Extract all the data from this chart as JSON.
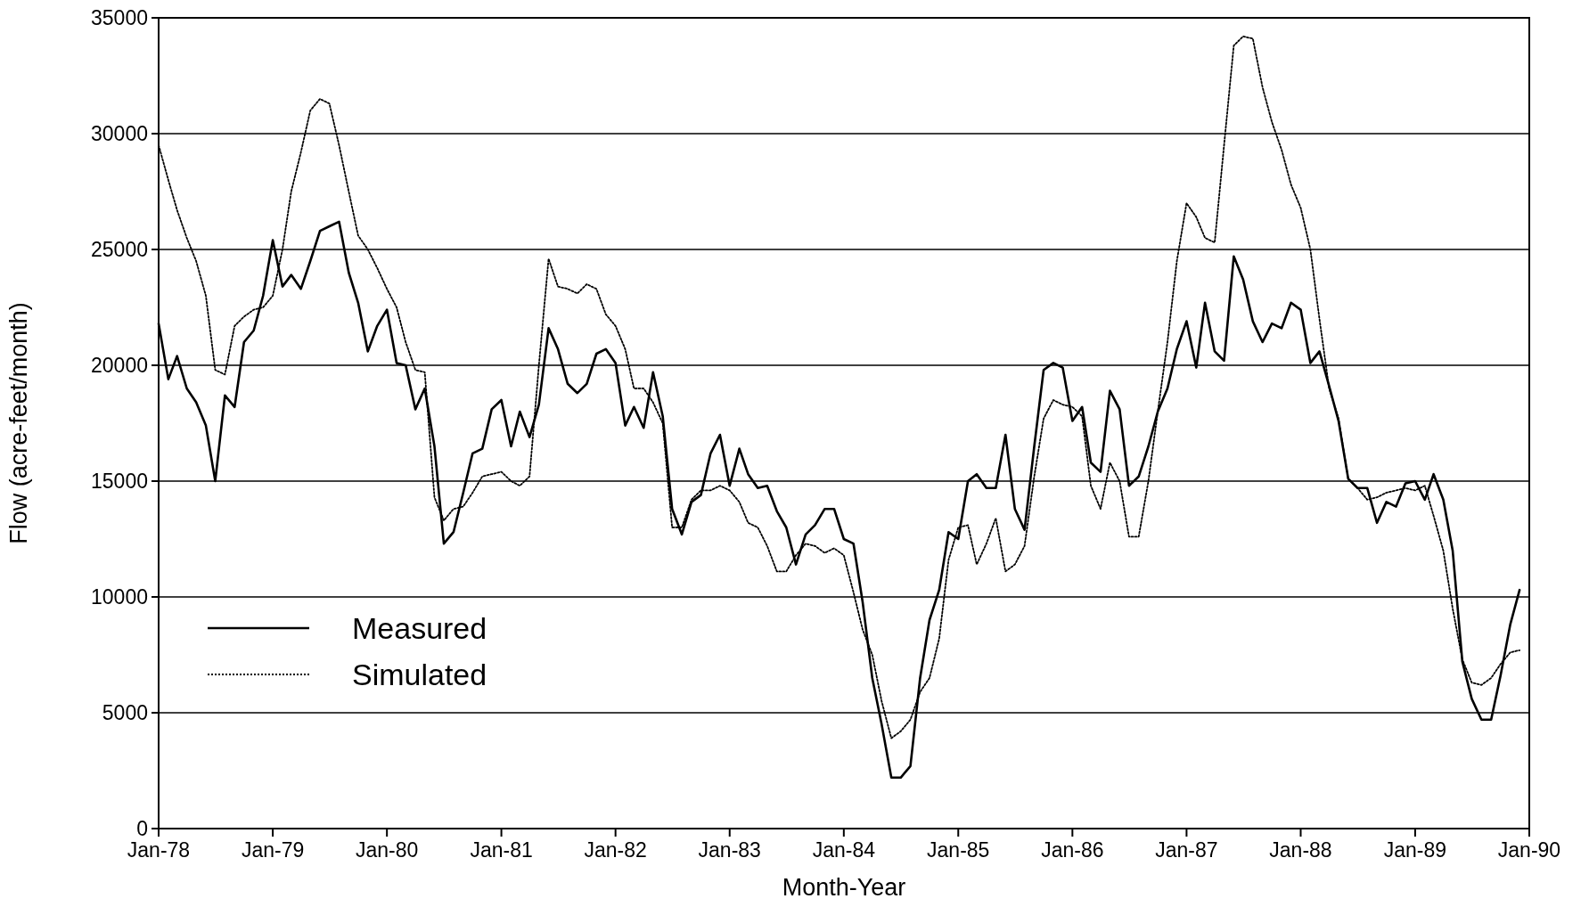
{
  "chart_data": {
    "type": "line",
    "xlabel": "Month-Year",
    "ylabel": "Flow (acre-feet/month)",
    "x": [
      "1978-01",
      "1978-02",
      "1978-03",
      "1978-04",
      "1978-05",
      "1978-06",
      "1978-07",
      "1978-08",
      "1978-09",
      "1978-10",
      "1978-11",
      "1978-12",
      "1979-01",
      "1979-02",
      "1979-03",
      "1979-04",
      "1979-05",
      "1979-06",
      "1979-07",
      "1979-08",
      "1979-09",
      "1979-10",
      "1979-11",
      "1979-12",
      "1980-01",
      "1980-02",
      "1980-03",
      "1980-04",
      "1980-05",
      "1980-06",
      "1980-07",
      "1980-08",
      "1980-09",
      "1980-10",
      "1980-11",
      "1980-12",
      "1981-01",
      "1981-02",
      "1981-03",
      "1981-04",
      "1981-05",
      "1981-06",
      "1981-07",
      "1981-08",
      "1981-09",
      "1981-10",
      "1981-11",
      "1981-12",
      "1982-01",
      "1982-02",
      "1982-03",
      "1982-04",
      "1982-05",
      "1982-06",
      "1982-07",
      "1982-08",
      "1982-09",
      "1982-10",
      "1982-11",
      "1982-12",
      "1983-01",
      "1983-02",
      "1983-03",
      "1983-04",
      "1983-05",
      "1983-06",
      "1983-07",
      "1983-08",
      "1983-09",
      "1983-10",
      "1983-11",
      "1983-12",
      "1984-01",
      "1984-02",
      "1984-03",
      "1984-04",
      "1984-05",
      "1984-06",
      "1984-07",
      "1984-08",
      "1984-09",
      "1984-10",
      "1984-11",
      "1984-12",
      "1985-01",
      "1985-02",
      "1985-03",
      "1985-04",
      "1985-05",
      "1985-06",
      "1985-07",
      "1985-08",
      "1985-09",
      "1985-10",
      "1985-11",
      "1985-12",
      "1986-01",
      "1986-02",
      "1986-03",
      "1986-04",
      "1986-05",
      "1986-06",
      "1986-07",
      "1986-08",
      "1986-09",
      "1986-10",
      "1986-11",
      "1986-12",
      "1987-01",
      "1987-02",
      "1987-03",
      "1987-04",
      "1987-05",
      "1987-06",
      "1987-07",
      "1987-08",
      "1987-09",
      "1987-10",
      "1987-11",
      "1987-12",
      "1988-01",
      "1988-02",
      "1988-03",
      "1988-04",
      "1988-05",
      "1988-06",
      "1988-07",
      "1988-08",
      "1988-09",
      "1988-10",
      "1988-11",
      "1988-12",
      "1989-01",
      "1989-02",
      "1989-03",
      "1989-04",
      "1989-05",
      "1989-06",
      "1989-07",
      "1989-08",
      "1989-09",
      "1989-10",
      "1989-11",
      "1989-12"
    ],
    "series": [
      {
        "name": "Measured",
        "color": "#000000",
        "line_style": "solid",
        "values": [
          21800,
          19400,
          20400,
          19000,
          18400,
          17400,
          15000,
          18700,
          18200,
          21000,
          21500,
          23000,
          25400,
          23400,
          23900,
          23300,
          24500,
          25800,
          26000,
          26200,
          24000,
          22700,
          20600,
          21700,
          22400,
          20100,
          20000,
          18100,
          19000,
          16500,
          12300,
          12800,
          14500,
          16200,
          16400,
          18100,
          18500,
          16500,
          18000,
          16900,
          18300,
          21600,
          20700,
          19200,
          18800,
          19200,
          20500,
          20700,
          20100,
          17400,
          18200,
          17300,
          19700,
          17800,
          13800,
          12700,
          14100,
          14400,
          16200,
          17000,
          14800,
          16400,
          15300,
          14700,
          14800,
          13700,
          13000,
          11400,
          12700,
          13100,
          13800,
          13800,
          12500,
          12300,
          9800,
          6500,
          4500,
          2200,
          2200,
          2700,
          6500,
          9000,
          10300,
          12800,
          12500,
          15000,
          15300,
          14700,
          14700,
          17000,
          13800,
          12900,
          16500,
          19800,
          20100,
          19900,
          17600,
          18200,
          15800,
          15400,
          18900,
          18100,
          14800,
          15200,
          16500,
          18000,
          19000,
          20700,
          21900,
          19900,
          22700,
          20600,
          20200,
          24700,
          23700,
          21900,
          21000,
          21800,
          21600,
          22700,
          22400,
          20100,
          20600,
          19100,
          17600,
          15100,
          14700,
          14700,
          13200,
          14100,
          13900,
          14900,
          15000,
          14200,
          15300,
          14200,
          12000,
          7200,
          5600,
          4700,
          4700,
          6600,
          8800,
          10300
        ]
      },
      {
        "name": "Simulated",
        "color": "#000000",
        "line_style": "dotted",
        "values": [
          29500,
          28000,
          26700,
          25500,
          24500,
          23000,
          19800,
          19600,
          21700,
          22100,
          22400,
          22500,
          23000,
          25000,
          27500,
          29200,
          31000,
          31500,
          31300,
          29500,
          27500,
          25600,
          25000,
          24200,
          23300,
          22500,
          21000,
          19800,
          19700,
          14300,
          13300,
          13800,
          13900,
          14500,
          15200,
          15300,
          15400,
          15000,
          14800,
          15200,
          20000,
          24600,
          23400,
          23300,
          23100,
          23500,
          23300,
          22200,
          21700,
          20700,
          19000,
          19000,
          18400,
          17500,
          13000,
          13000,
          14200,
          14600,
          14600,
          14800,
          14600,
          14100,
          13200,
          13000,
          12200,
          11100,
          11100,
          11800,
          12300,
          12200,
          11900,
          12100,
          11800,
          10200,
          8600,
          7500,
          5500,
          3900,
          4200,
          4700,
          5900,
          6500,
          8200,
          11600,
          13000,
          13100,
          11400,
          12300,
          13400,
          11100,
          11400,
          12200,
          15200,
          17700,
          18500,
          18300,
          18200,
          17800,
          14800,
          13800,
          15800,
          15000,
          12600,
          12600,
          15000,
          18000,
          21000,
          24500,
          27000,
          26400,
          25500,
          25300,
          29500,
          33800,
          34200,
          34100,
          32000,
          30500,
          29300,
          27800,
          26800,
          25000,
          22000,
          19000,
          17700,
          15100,
          14700,
          14200,
          14300,
          14500,
          14600,
          14700,
          14600,
          14800,
          13500,
          12000,
          9500,
          7300,
          6300,
          6200,
          6500,
          7100,
          7600,
          7700
        ]
      }
    ],
    "xlim": [
      "1978-01",
      "1990-01"
    ],
    "xticks": [
      {
        "value": "1978-01",
        "label": "Jan-78"
      },
      {
        "value": "1979-01",
        "label": "Jan-79"
      },
      {
        "value": "1980-01",
        "label": "Jan-80"
      },
      {
        "value": "1981-01",
        "label": "Jan-81"
      },
      {
        "value": "1982-01",
        "label": "Jan-82"
      },
      {
        "value": "1983-01",
        "label": "Jan-83"
      },
      {
        "value": "1984-01",
        "label": "Jan-84"
      },
      {
        "value": "1985-01",
        "label": "Jan-85"
      },
      {
        "value": "1986-01",
        "label": "Jan-86"
      },
      {
        "value": "1987-01",
        "label": "Jan-87"
      },
      {
        "value": "1988-01",
        "label": "Jan-88"
      },
      {
        "value": "1989-01",
        "label": "Jan-89"
      },
      {
        "value": "1990-01",
        "label": "Jan-90"
      }
    ],
    "ylim": [
      0,
      35000
    ],
    "yticks": [
      0,
      5000,
      10000,
      15000,
      20000,
      25000,
      30000,
      35000
    ],
    "grid": "y",
    "legend": "bottom left",
    "marker": "none"
  }
}
